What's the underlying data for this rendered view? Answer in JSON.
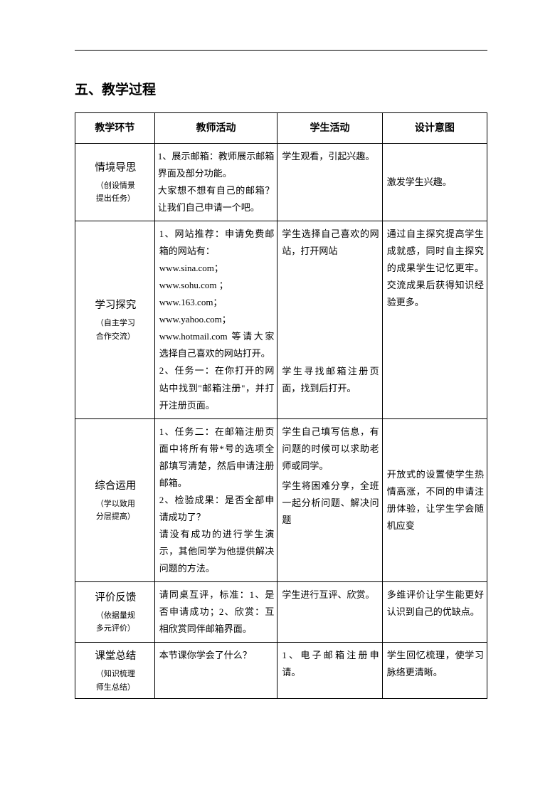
{
  "section_title": "五、教学过程",
  "headers": [
    "教学环节",
    "教师活动",
    "学生活动",
    "设计意图"
  ],
  "rows": [
    {
      "stage_main": "情境导思",
      "stage_sub1": "（创设情景",
      "stage_sub2": "提出任务）",
      "teacher": "1、展示邮箱：教师展示邮箱界面及部分功能。\n大家想不想有自己的邮箱？让我们自己申请一个吧。",
      "student": "学生观看，引起兴趣。",
      "design": "激发学生兴趣。"
    },
    {
      "stage_main": "学习探究",
      "stage_sub1": "（自主学习",
      "stage_sub2": "合作交流）",
      "teacher": "1、网站推荐：申请免费邮箱的网站有：\nwww.sina.com；\nwww.sohu.com ；\nwww.163.com；\nwww.yahoo.com；\nwww.hotmail.com 等请大家选择自己喜欢的网站打开。\n2、任务一：在你打开的网站中找到\"邮箱注册\"，并打开注册页面。",
      "student_top": "学生选择自己喜欢的网站，打开网站",
      "student_bottom": "学生寻找邮箱注册页面，找到后打开。",
      "design": "通过自主探究提高学生成就感，同时自主探究的成果学生记忆更牢。交流成果后获得知识经验更多。"
    },
    {
      "stage_main": "综合运用",
      "stage_sub1": "（学以致用",
      "stage_sub2": "分层提高）",
      "teacher": "1、任务二：在邮箱注册页面中将所有带*号的选项全部填写清楚，然后申请注册邮箱。\n2、检验成果：是否全部申请成功了？\n请没有成功的进行学生演示，其他同学为他提供解决问题的方法。",
      "student_top": "学生自己填写信息，有问题的时候可以求助老师或同学。",
      "student_bottom": "学生将困难分享，全班一起分析问题、解决问题",
      "design": "开放式的设置使学生热情高涨，不同的申请注册体验，让学生学会随机应变"
    },
    {
      "stage_main": "评价反馈",
      "stage_sub1": "（依据量规",
      "stage_sub2": "多元评价）",
      "teacher": "请同桌互评，标准：1、是否申请成功；2、欣赏：互相欣赏同伴邮箱界面。",
      "student": "学生进行互评、欣赏。",
      "design": "多维评价让学生能更好认识到自己的优缺点。"
    },
    {
      "stage_main": "课堂总结",
      "stage_sub1": "（知识梳理",
      "stage_sub2": "师生总结）",
      "teacher": "本节课你学会了什么？",
      "student": "1、电子邮箱注册申请。",
      "design": "学生回忆梳理，使学习脉络更清晰。"
    }
  ]
}
